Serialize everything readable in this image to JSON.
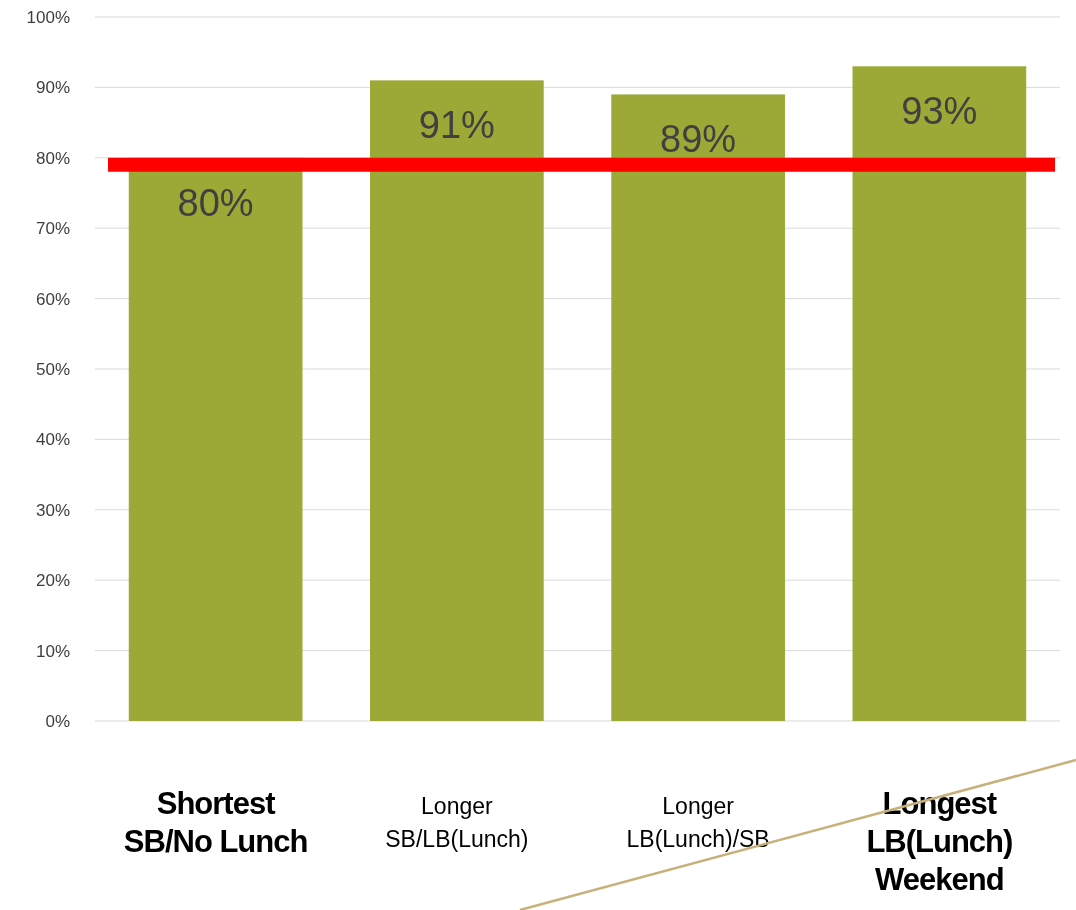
{
  "chart_data": {
    "type": "bar",
    "categories": [
      "Shortest\nSB/No Lunch",
      "Longer\nSB/LB(Lunch)",
      "Longer\nLB(Lunch)/SB",
      "Longest\nLB(Lunch)\nWeekend"
    ],
    "values": [
      80,
      91,
      89,
      93
    ],
    "color": "#9ca937",
    "data_labels": true,
    "value_labels": [
      "80%",
      "91%",
      "89%",
      "93%"
    ],
    "ylim": [
      0,
      100
    ],
    "yticks": [
      {
        "value": 0,
        "label": "0%"
      },
      {
        "value": 10,
        "label": "10%"
      },
      {
        "value": 20,
        "label": "20%"
      },
      {
        "value": 30,
        "label": "30%"
      },
      {
        "value": 40,
        "label": "40%"
      },
      {
        "value": 50,
        "label": "50%"
      },
      {
        "value": 60,
        "label": "60%"
      },
      {
        "value": 70,
        "label": "70%"
      },
      {
        "value": 80,
        "label": "80%"
      },
      {
        "value": 90,
        "label": "90%"
      },
      {
        "value": 100,
        "label": "100%"
      }
    ],
    "grid": "y",
    "ref_lines": [
      {
        "axis": "y",
        "value": 79,
        "color": "#ff0000"
      }
    ]
  }
}
